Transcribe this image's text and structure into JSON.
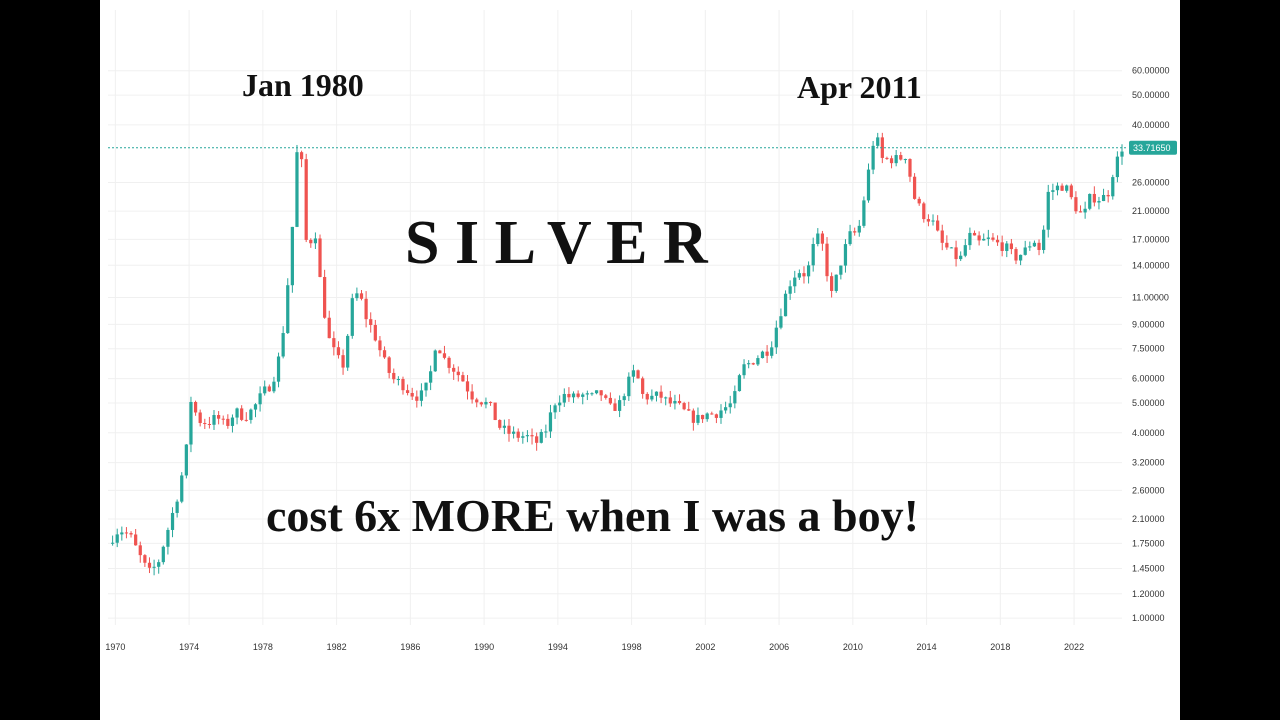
{
  "chart_data": {
    "type": "candlestick",
    "scale": "log",
    "title": "S I L V E R",
    "subtitle": "cost 6x MORE when I was a boy!",
    "annotations": [
      {
        "text": "Jan 1980",
        "x": 1980.0
      },
      {
        "text": "Apr 2011",
        "x": 2011.3
      }
    ],
    "last_price": 33.7165,
    "last_price_label": "33.71650",
    "x_ticks": [
      "1970",
      "1974",
      "1978",
      "1982",
      "1986",
      "1990",
      "1994",
      "1998",
      "2002",
      "2006",
      "2010",
      "2014",
      "2018",
      "2022"
    ],
    "y_ticks": [
      {
        "v": 1.0,
        "l": "1.00000"
      },
      {
        "v": 1.2,
        "l": "1.20000"
      },
      {
        "v": 1.45,
        "l": "1.45000"
      },
      {
        "v": 1.75,
        "l": "1.75000"
      },
      {
        "v": 2.1,
        "l": "2.10000"
      },
      {
        "v": 2.6,
        "l": "2.60000"
      },
      {
        "v": 3.2,
        "l": "3.20000"
      },
      {
        "v": 4.0,
        "l": "4.00000"
      },
      {
        "v": 5.0,
        "l": "5.00000"
      },
      {
        "v": 6.0,
        "l": "6.00000"
      },
      {
        "v": 7.5,
        "l": "7.50000"
      },
      {
        "v": 9.0,
        "l": "9.00000"
      },
      {
        "v": 11.0,
        "l": "11.00000"
      },
      {
        "v": 14.0,
        "l": "14.00000"
      },
      {
        "v": 17.0,
        "l": "17.00000"
      },
      {
        "v": 21.0,
        "l": "21.00000"
      },
      {
        "v": 26.0,
        "l": "26.00000"
      },
      {
        "v": 40.0,
        "l": "40.00000"
      },
      {
        "v": 50.0,
        "l": "50.00000"
      },
      {
        "v": 60.0,
        "l": "60.00000"
      }
    ],
    "ylim": [
      0.95,
      65
    ],
    "xlim": [
      1969.6,
      2024.6
    ],
    "grid": true,
    "colors": {
      "up": "#26a69a",
      "down": "#ef5350",
      "line": "#26a69a",
      "label_bg": "#26a69a"
    },
    "price_path": [
      [
        1969.6,
        1.75
      ],
      [
        1970.2,
        1.95
      ],
      [
        1970.8,
        1.85
      ],
      [
        1971.3,
        1.6
      ],
      [
        1971.8,
        1.4
      ],
      [
        1972.3,
        1.5
      ],
      [
        1972.8,
        1.9
      ],
      [
        1973.3,
        2.4
      ],
      [
        1973.8,
        3.3
      ],
      [
        1974.1,
        5.1
      ],
      [
        1974.5,
        4.4
      ],
      [
        1975.0,
        4.3
      ],
      [
        1975.5,
        4.5
      ],
      [
        1976.0,
        4.2
      ],
      [
        1976.5,
        4.7
      ],
      [
        1977.0,
        4.5
      ],
      [
        1977.5,
        4.8
      ],
      [
        1978.0,
        5.4
      ],
      [
        1978.5,
        5.8
      ],
      [
        1979.0,
        7.5
      ],
      [
        1979.5,
        15.0
      ],
      [
        1979.9,
        36.0
      ],
      [
        1980.1,
        30.0
      ],
      [
        1980.4,
        15.0
      ],
      [
        1980.8,
        19.0
      ],
      [
        1981.2,
        11.0
      ],
      [
        1981.6,
        8.0
      ],
      [
        1982.0,
        7.0
      ],
      [
        1982.4,
        6.6
      ],
      [
        1982.8,
        10.5
      ],
      [
        1983.2,
        11.5
      ],
      [
        1983.6,
        9.5
      ],
      [
        1984.0,
        8.5
      ],
      [
        1984.5,
        7.0
      ],
      [
        1985.0,
        6.0
      ],
      [
        1985.5,
        5.8
      ],
      [
        1986.0,
        5.4
      ],
      [
        1986.5,
        5.2
      ],
      [
        1987.0,
        5.8
      ],
      [
        1987.4,
        8.0
      ],
      [
        1987.8,
        7.0
      ],
      [
        1988.3,
        6.5
      ],
      [
        1988.8,
        6.0
      ],
      [
        1989.3,
        5.3
      ],
      [
        1989.8,
        5.1
      ],
      [
        1990.3,
        4.9
      ],
      [
        1990.8,
        4.2
      ],
      [
        1991.3,
        4.0
      ],
      [
        1991.8,
        3.9
      ],
      [
        1992.3,
        3.9
      ],
      [
        1992.8,
        3.7
      ],
      [
        1993.3,
        4.0
      ],
      [
        1993.8,
        5.0
      ],
      [
        1994.3,
        5.3
      ],
      [
        1994.8,
        5.2
      ],
      [
        1995.3,
        5.3
      ],
      [
        1995.8,
        5.2
      ],
      [
        1996.3,
        5.4
      ],
      [
        1996.8,
        4.8
      ],
      [
        1997.3,
        4.9
      ],
      [
        1997.8,
        5.8
      ],
      [
        1998.2,
        6.4
      ],
      [
        1998.6,
        5.3
      ],
      [
        1999.0,
        5.2
      ],
      [
        1999.5,
        5.3
      ],
      [
        2000.0,
        5.0
      ],
      [
        2000.5,
        4.9
      ],
      [
        2001.0,
        4.6
      ],
      [
        2001.5,
        4.4
      ],
      [
        2002.0,
        4.6
      ],
      [
        2002.5,
        4.6
      ],
      [
        2003.0,
        4.8
      ],
      [
        2003.5,
        5.0
      ],
      [
        2004.0,
        6.5
      ],
      [
        2004.5,
        6.8
      ],
      [
        2005.0,
        7.2
      ],
      [
        2005.5,
        7.5
      ],
      [
        2006.0,
        9.5
      ],
      [
        2006.5,
        12.0
      ],
      [
        2007.0,
        13.5
      ],
      [
        2007.5,
        13.0
      ],
      [
        2008.0,
        17.5
      ],
      [
        2008.4,
        16.0
      ],
      [
        2008.8,
        11.0
      ],
      [
        2009.3,
        14.0
      ],
      [
        2009.8,
        17.5
      ],
      [
        2010.3,
        18.0
      ],
      [
        2010.8,
        27.0
      ],
      [
        2011.2,
        38.0
      ],
      [
        2011.6,
        31.0
      ],
      [
        2012.0,
        31.0
      ],
      [
        2012.5,
        31.0
      ],
      [
        2012.9,
        32.0
      ],
      [
        2013.3,
        23.5
      ],
      [
        2013.8,
        20.5
      ],
      [
        2014.3,
        19.5
      ],
      [
        2014.8,
        16.5
      ],
      [
        2015.3,
        15.5
      ],
      [
        2015.8,
        14.5
      ],
      [
        2016.3,
        17.5
      ],
      [
        2016.8,
        16.5
      ],
      [
        2017.3,
        17.0
      ],
      [
        2017.8,
        16.5
      ],
      [
        2018.3,
        16.0
      ],
      [
        2018.8,
        14.8
      ],
      [
        2019.3,
        15.5
      ],
      [
        2019.8,
        17.0
      ],
      [
        2020.2,
        15.5
      ],
      [
        2020.6,
        24.0
      ],
      [
        2021.0,
        25.0
      ],
      [
        2021.5,
        25.5
      ],
      [
        2022.0,
        22.0
      ],
      [
        2022.5,
        20.0
      ],
      [
        2022.9,
        23.5
      ],
      [
        2023.3,
        23.0
      ],
      [
        2023.8,
        23.5
      ],
      [
        2024.1,
        28.0
      ],
      [
        2024.4,
        31.5
      ],
      [
        2024.6,
        33.7
      ]
    ]
  }
}
